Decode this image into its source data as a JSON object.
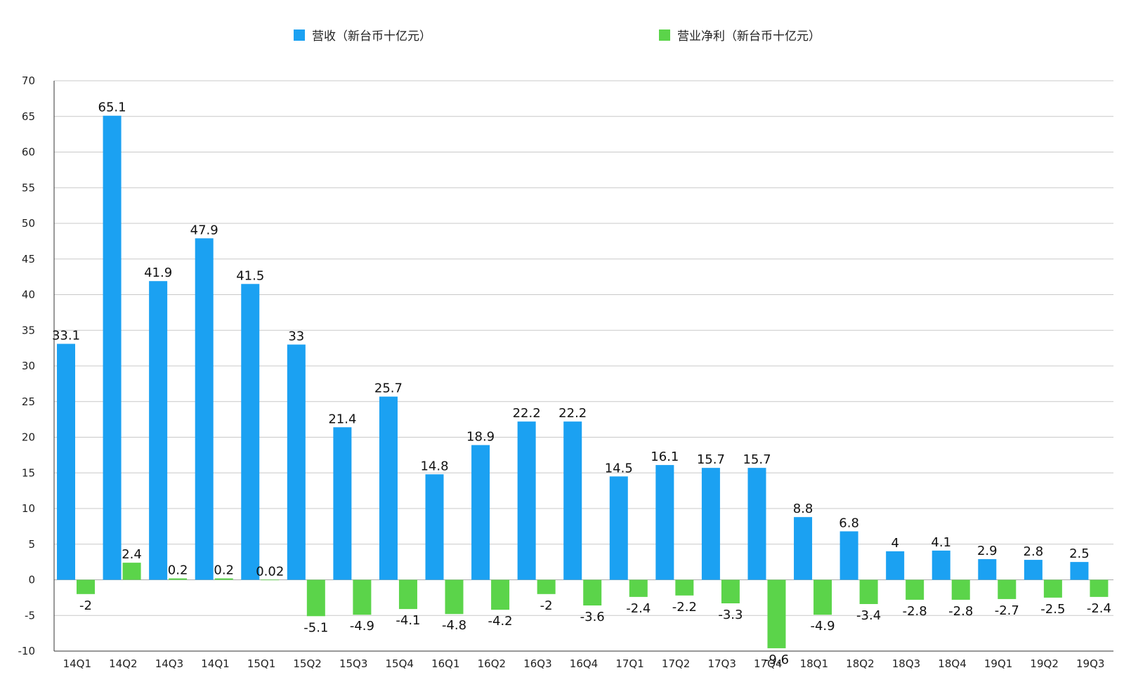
{
  "chart_data": {
    "type": "bar",
    "title": "",
    "xlabel": "",
    "ylabel": "",
    "ylim": [
      -10,
      70
    ],
    "yticks": [
      -10,
      -5,
      0,
      5,
      10,
      15,
      20,
      25,
      30,
      35,
      40,
      45,
      50,
      55,
      60,
      65,
      70
    ],
    "grid": true,
    "legend_position": "top",
    "categories": [
      "14Q1",
      "14Q2",
      "14Q3",
      "14Q1",
      "15Q1",
      "15Q2",
      "15Q3",
      "15Q4",
      "16Q1",
      "16Q2",
      "16Q3",
      "16Q4",
      "17Q1",
      "17Q2",
      "17Q3",
      "17Q4",
      "18Q1",
      "18Q2",
      "18Q3",
      "18Q4",
      "19Q1",
      "19Q2",
      "19Q3"
    ],
    "series": [
      {
        "name": "营收（新台币十亿元）",
        "color": "#1BA1F2",
        "values": [
          33.1,
          65.1,
          41.9,
          47.9,
          41.5,
          33,
          21.4,
          25.7,
          14.8,
          18.9,
          22.2,
          22.2,
          14.5,
          16.1,
          15.7,
          15.7,
          8.8,
          6.8,
          4,
          4.1,
          2.9,
          2.8,
          2.5
        ]
      },
      {
        "name": "营业净利（新台币十亿元）",
        "color": "#5BD44A",
        "values": [
          -2,
          2.4,
          0.2,
          0.2,
          0.02,
          -5.1,
          -4.9,
          -4.1,
          -4.8,
          -4.2,
          -2,
          -3.6,
          -2.4,
          -2.2,
          -3.3,
          -9.6,
          -4.9,
          -3.4,
          -2.8,
          -2.8,
          -2.7,
          -2.5,
          -2.4
        ]
      }
    ]
  }
}
